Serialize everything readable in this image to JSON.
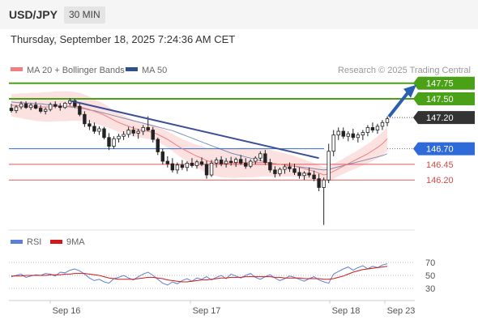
{
  "header": {
    "pair": "USD/JPY",
    "timeframe": "30 MIN",
    "timestamp": "Thursday, September 18, 2025 7:24:36 AM CET"
  },
  "legend": {
    "ma20": "MA 20 + Bollinger Bands",
    "ma50": "MA 50",
    "source": "Research © 2025 Trading Central",
    "colors": {
      "ma20": "#f07f7f",
      "ma50": "#2f4f8f",
      "band": "#fbd7d7"
    }
  },
  "rsi_legend": {
    "rsi": "RSI",
    "ma": "9MA",
    "colors": {
      "rsi": "#5b7fd6",
      "ma": "#d01818"
    }
  },
  "chart_data": [
    {
      "type": "candlestick",
      "title": "",
      "x_labels": [
        "Sep 16",
        "Sep 17",
        "Sep 18",
        "Sep 23"
      ],
      "price_range": [
        145.45,
        147.85
      ],
      "levels": [
        {
          "value": 147.75,
          "label": "147.75",
          "style": "resistance",
          "color": "#4aa118"
        },
        {
          "value": 147.5,
          "label": "147.50",
          "style": "resistance",
          "color": "#4aa118"
        },
        {
          "value": 147.2,
          "label": "147.20",
          "style": "current",
          "color": "#333333"
        },
        {
          "value": 146.7,
          "label": "146.70",
          "style": "pivot",
          "color": "#2f6bd8"
        },
        {
          "value": 146.45,
          "label": "146.45",
          "style": "support",
          "color": "#e05a5a"
        },
        {
          "value": 146.2,
          "label": "146.20",
          "style": "support",
          "color": "#e05a5a"
        }
      ],
      "colors": {
        "up": "#ffffff",
        "down": "#222222",
        "trendline": "#3a4f96",
        "arrow": "#2a5fb0"
      },
      "candles_approx": [
        {
          "o": 147.35,
          "h": 147.42,
          "l": 147.28,
          "c": 147.31
        },
        {
          "o": 147.31,
          "h": 147.4,
          "l": 147.27,
          "c": 147.37
        },
        {
          "o": 147.37,
          "h": 147.46,
          "l": 147.33,
          "c": 147.42
        },
        {
          "o": 147.42,
          "h": 147.46,
          "l": 147.34,
          "c": 147.36
        },
        {
          "o": 147.36,
          "h": 147.43,
          "l": 147.32,
          "c": 147.4
        },
        {
          "o": 147.4,
          "h": 147.45,
          "l": 147.33,
          "c": 147.35
        },
        {
          "o": 147.35,
          "h": 147.4,
          "l": 147.27,
          "c": 147.3
        },
        {
          "o": 147.3,
          "h": 147.36,
          "l": 147.25,
          "c": 147.33
        },
        {
          "o": 147.33,
          "h": 147.44,
          "l": 147.3,
          "c": 147.41
        },
        {
          "o": 147.41,
          "h": 147.46,
          "l": 147.35,
          "c": 147.38
        },
        {
          "o": 147.38,
          "h": 147.43,
          "l": 147.31,
          "c": 147.36
        },
        {
          "o": 147.36,
          "h": 147.45,
          "l": 147.34,
          "c": 147.43
        },
        {
          "o": 147.43,
          "h": 147.51,
          "l": 147.39,
          "c": 147.47
        },
        {
          "o": 147.47,
          "h": 147.5,
          "l": 147.35,
          "c": 147.38
        },
        {
          "o": 147.38,
          "h": 147.43,
          "l": 147.22,
          "c": 147.25
        },
        {
          "o": 147.25,
          "h": 147.3,
          "l": 147.05,
          "c": 147.1
        },
        {
          "o": 147.1,
          "h": 147.16,
          "l": 147.0,
          "c": 147.06
        },
        {
          "o": 147.06,
          "h": 147.12,
          "l": 146.94,
          "c": 146.98
        },
        {
          "o": 146.98,
          "h": 147.06,
          "l": 146.92,
          "c": 147.02
        },
        {
          "o": 147.02,
          "h": 147.05,
          "l": 146.85,
          "c": 146.88
        },
        {
          "o": 146.88,
          "h": 146.95,
          "l": 146.68,
          "c": 146.74
        },
        {
          "o": 146.74,
          "h": 146.9,
          "l": 146.7,
          "c": 146.86
        },
        {
          "o": 146.86,
          "h": 146.94,
          "l": 146.8,
          "c": 146.9
        },
        {
          "o": 146.9,
          "h": 146.98,
          "l": 146.84,
          "c": 146.93
        },
        {
          "o": 146.93,
          "h": 147.05,
          "l": 146.88,
          "c": 147.0
        },
        {
          "o": 147.0,
          "h": 147.06,
          "l": 146.9,
          "c": 146.95
        },
        {
          "o": 146.95,
          "h": 147.02,
          "l": 146.86,
          "c": 146.98
        },
        {
          "o": 146.98,
          "h": 147.08,
          "l": 146.92,
          "c": 147.04
        },
        {
          "o": 147.04,
          "h": 147.22,
          "l": 146.98,
          "c": 147.0
        },
        {
          "o": 147.0,
          "h": 147.05,
          "l": 146.8,
          "c": 146.85
        },
        {
          "o": 146.85,
          "h": 146.88,
          "l": 146.6,
          "c": 146.65
        },
        {
          "o": 146.65,
          "h": 146.7,
          "l": 146.45,
          "c": 146.5
        },
        {
          "o": 146.5,
          "h": 146.58,
          "l": 146.4,
          "c": 146.46
        },
        {
          "o": 146.46,
          "h": 146.55,
          "l": 146.32,
          "c": 146.36
        },
        {
          "o": 146.36,
          "h": 146.48,
          "l": 146.3,
          "c": 146.44
        },
        {
          "o": 146.44,
          "h": 146.52,
          "l": 146.36,
          "c": 146.4
        },
        {
          "o": 146.4,
          "h": 146.5,
          "l": 146.34,
          "c": 146.47
        },
        {
          "o": 146.47,
          "h": 146.55,
          "l": 146.4,
          "c": 146.43
        },
        {
          "o": 146.43,
          "h": 146.52,
          "l": 146.38,
          "c": 146.49
        },
        {
          "o": 146.49,
          "h": 146.56,
          "l": 146.42,
          "c": 146.45
        },
        {
          "o": 146.45,
          "h": 146.51,
          "l": 146.22,
          "c": 146.28
        },
        {
          "o": 146.28,
          "h": 146.52,
          "l": 146.25,
          "c": 146.47
        },
        {
          "o": 146.47,
          "h": 146.56,
          "l": 146.4,
          "c": 146.52
        },
        {
          "o": 146.52,
          "h": 146.58,
          "l": 146.42,
          "c": 146.46
        },
        {
          "o": 146.46,
          "h": 146.55,
          "l": 146.4,
          "c": 146.5
        },
        {
          "o": 146.5,
          "h": 146.57,
          "l": 146.43,
          "c": 146.48
        },
        {
          "o": 146.48,
          "h": 146.56,
          "l": 146.41,
          "c": 146.53
        },
        {
          "o": 146.53,
          "h": 146.6,
          "l": 146.44,
          "c": 146.47
        },
        {
          "o": 146.47,
          "h": 146.55,
          "l": 146.38,
          "c": 146.42
        },
        {
          "o": 146.42,
          "h": 146.53,
          "l": 146.39,
          "c": 146.5
        },
        {
          "o": 146.5,
          "h": 146.58,
          "l": 146.45,
          "c": 146.55
        },
        {
          "o": 146.55,
          "h": 146.66,
          "l": 146.5,
          "c": 146.62
        },
        {
          "o": 146.62,
          "h": 146.68,
          "l": 146.44,
          "c": 146.48
        },
        {
          "o": 146.48,
          "h": 146.54,
          "l": 146.32,
          "c": 146.36
        },
        {
          "o": 146.36,
          "h": 146.42,
          "l": 146.24,
          "c": 146.3
        },
        {
          "o": 146.3,
          "h": 146.4,
          "l": 146.26,
          "c": 146.37
        },
        {
          "o": 146.37,
          "h": 146.45,
          "l": 146.3,
          "c": 146.41
        },
        {
          "o": 146.41,
          "h": 146.48,
          "l": 146.33,
          "c": 146.38
        },
        {
          "o": 146.38,
          "h": 146.46,
          "l": 146.28,
          "c": 146.32
        },
        {
          "o": 146.32,
          "h": 146.4,
          "l": 146.22,
          "c": 146.27
        },
        {
          "o": 146.27,
          "h": 146.34,
          "l": 146.2,
          "c": 146.31
        },
        {
          "o": 146.31,
          "h": 146.4,
          "l": 146.24,
          "c": 146.28
        },
        {
          "o": 146.28,
          "h": 146.35,
          "l": 146.18,
          "c": 146.22
        },
        {
          "o": 146.22,
          "h": 146.3,
          "l": 146.02,
          "c": 146.08
        },
        {
          "o": 146.08,
          "h": 146.24,
          "l": 145.48,
          "c": 146.2
        },
        {
          "o": 146.2,
          "h": 146.78,
          "l": 146.15,
          "c": 146.66
        },
        {
          "o": 146.66,
          "h": 147.0,
          "l": 146.58,
          "c": 146.92
        },
        {
          "o": 146.92,
          "h": 147.04,
          "l": 146.84,
          "c": 146.98
        },
        {
          "o": 146.98,
          "h": 147.04,
          "l": 146.86,
          "c": 146.9
        },
        {
          "o": 146.9,
          "h": 146.98,
          "l": 146.82,
          "c": 146.94
        },
        {
          "o": 146.94,
          "h": 147.02,
          "l": 146.84,
          "c": 146.88
        },
        {
          "o": 146.88,
          "h": 146.96,
          "l": 146.8,
          "c": 146.92
        },
        {
          "o": 146.92,
          "h": 147.0,
          "l": 146.84,
          "c": 146.96
        },
        {
          "o": 146.96,
          "h": 147.08,
          "l": 146.9,
          "c": 147.04
        },
        {
          "o": 147.04,
          "h": 147.12,
          "l": 146.96,
          "c": 147.0
        },
        {
          "o": 147.0,
          "h": 147.1,
          "l": 146.94,
          "c": 147.06
        },
        {
          "o": 147.06,
          "h": 147.16,
          "l": 147.0,
          "c": 147.12
        },
        {
          "o": 147.12,
          "h": 147.22,
          "l": 147.06,
          "c": 147.18
        }
      ],
      "ma20_approx": [
        147.4,
        147.39,
        147.39,
        147.38,
        147.38,
        147.37,
        147.37,
        147.37,
        147.37,
        147.38,
        147.38,
        147.38,
        147.38,
        147.38,
        147.37,
        147.35,
        147.33,
        147.3,
        147.27,
        147.24,
        147.2,
        147.16,
        147.12,
        147.09,
        147.06,
        147.03,
        147.01,
        146.99,
        146.98,
        146.96,
        146.93,
        146.89,
        146.85,
        146.8,
        146.75,
        146.7,
        146.66,
        146.62,
        146.58,
        146.55,
        146.51,
        146.49,
        146.48,
        146.47,
        146.47,
        146.47,
        146.47,
        146.48,
        146.48,
        146.48,
        146.48,
        146.48,
        146.48,
        146.47,
        146.46,
        146.45,
        146.44,
        146.43,
        146.42,
        146.4,
        146.38,
        146.36,
        146.34,
        146.31,
        146.28,
        146.3,
        146.34,
        146.38,
        146.42,
        146.46,
        146.5,
        146.54,
        146.58,
        146.62,
        146.67,
        146.72,
        146.78,
        146.86
      ],
      "ma50_approx": [
        147.45,
        147.44,
        147.44,
        147.43,
        147.43,
        147.42,
        147.42,
        147.41,
        147.4,
        147.4,
        147.39,
        147.38,
        147.37,
        147.36,
        147.35,
        147.34,
        147.32,
        147.31,
        147.29,
        147.27,
        147.25,
        147.23,
        147.21,
        147.19,
        147.17,
        147.15,
        147.13,
        147.11,
        147.09,
        147.07,
        147.05,
        147.03,
        147.01,
        146.99,
        146.96,
        146.93,
        146.9,
        146.87,
        146.84,
        146.81,
        146.78,
        146.75,
        146.72,
        146.69,
        146.66,
        146.63,
        146.61,
        146.59,
        146.57,
        146.55,
        146.53,
        146.51,
        146.49,
        146.47,
        146.46,
        146.45,
        146.44,
        146.43,
        146.42,
        146.41,
        146.4,
        146.39,
        146.38,
        146.37,
        146.36,
        146.37,
        146.39,
        146.41,
        146.43,
        146.45,
        146.47,
        146.49,
        146.51,
        146.53,
        146.55,
        146.57,
        146.59,
        146.62
      ],
      "trendline": {
        "start": 147.47,
        "end": 146.55
      },
      "arrow_target": 147.75
    },
    {
      "type": "line",
      "title": "",
      "ylim": [
        20,
        80
      ],
      "y_ticks": [
        70,
        50,
        30
      ],
      "series": [
        {
          "name": "RSI",
          "values": [
            48,
            50,
            52,
            47,
            49,
            51,
            50,
            53,
            52,
            49,
            55,
            54,
            58,
            60,
            57,
            52,
            46,
            42,
            44,
            40,
            38,
            45,
            47,
            50,
            46,
            43,
            48,
            52,
            55,
            50,
            44,
            38,
            35,
            40,
            37,
            42,
            45,
            41,
            46,
            44,
            48,
            43,
            47,
            50,
            45,
            52,
            49,
            46,
            50,
            53,
            47,
            44,
            48,
            51,
            46,
            42,
            45,
            49,
            47,
            44,
            41,
            45,
            48,
            43,
            40,
            38,
            52,
            56,
            60,
            63,
            58,
            62,
            65,
            60,
            64,
            62,
            66,
            68
          ]
        },
        {
          "name": "9MA",
          "values": [
            49,
            49,
            49,
            50,
            50,
            50,
            50,
            50,
            51,
            51,
            51,
            52,
            52,
            53,
            53,
            53,
            52,
            51,
            50,
            48,
            46,
            45,
            44,
            44,
            44,
            44,
            45,
            46,
            47,
            47,
            46,
            45,
            43,
            42,
            41,
            40,
            40,
            41,
            42,
            43,
            43,
            44,
            45,
            46,
            46,
            47,
            47,
            47,
            48,
            48,
            48,
            48,
            48,
            48,
            47,
            47,
            46,
            46,
            46,
            46,
            45,
            45,
            45,
            45,
            44,
            44,
            45,
            47,
            49,
            52,
            55,
            57,
            59,
            60,
            61,
            62,
            63,
            64
          ]
        }
      ]
    }
  ]
}
